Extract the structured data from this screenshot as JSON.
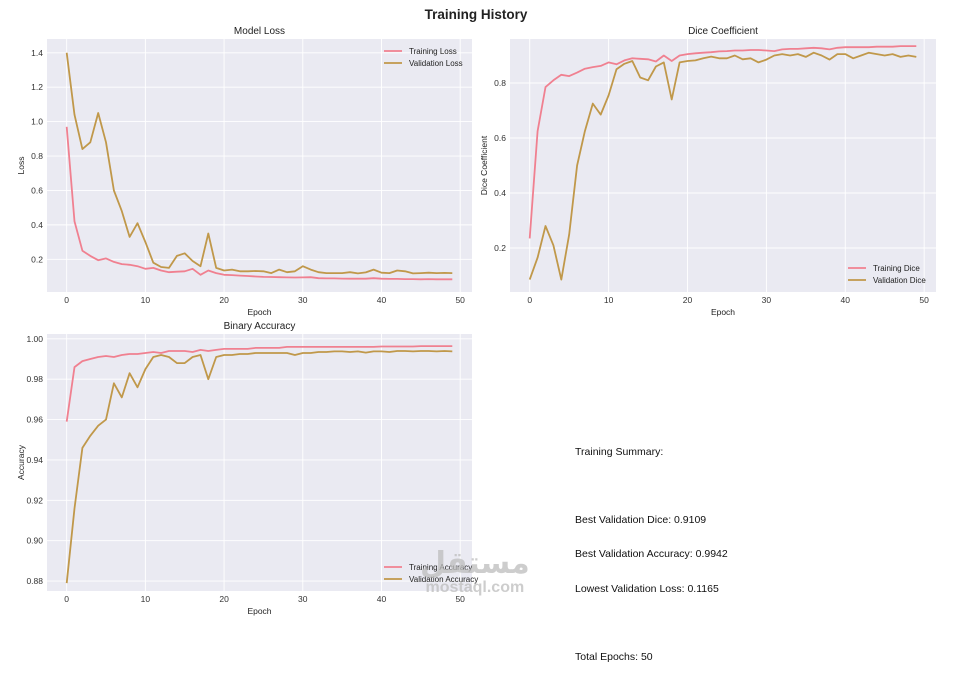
{
  "title": "Training History",
  "chart_data": [
    {
      "type": "line",
      "title": "Model Loss",
      "xlabel": "Epoch",
      "ylabel": "Loss",
      "xlim": [
        -2.5,
        51.5
      ],
      "ylim": [
        0.01,
        1.48
      ],
      "xticks": [
        0,
        10,
        20,
        30,
        40,
        50
      ],
      "yticks": [
        0.2,
        0.4,
        0.6,
        0.8,
        1.0,
        1.2,
        1.4
      ],
      "yfmt": 1,
      "legend": "top-right",
      "series": [
        {
          "name": "Training Loss",
          "color": "#f08090",
          "values": [
            0.97,
            0.42,
            0.25,
            0.22,
            0.195,
            0.205,
            0.185,
            0.172,
            0.168,
            0.16,
            0.145,
            0.15,
            0.135,
            0.125,
            0.128,
            0.13,
            0.145,
            0.11,
            0.135,
            0.12,
            0.11,
            0.108,
            0.105,
            0.103,
            0.1,
            0.098,
            0.097,
            0.096,
            0.095,
            0.094,
            0.095,
            0.096,
            0.09,
            0.089,
            0.089,
            0.088,
            0.087,
            0.088,
            0.087,
            0.09,
            0.087,
            0.086,
            0.086,
            0.085,
            0.085,
            0.084,
            0.085,
            0.084,
            0.084,
            0.084
          ]
        },
        {
          "name": "Validation Loss",
          "color": "#c0984a",
          "values": [
            1.4,
            1.04,
            0.84,
            0.88,
            1.05,
            0.88,
            0.6,
            0.48,
            0.33,
            0.41,
            0.3,
            0.18,
            0.155,
            0.15,
            0.22,
            0.235,
            0.19,
            0.16,
            0.35,
            0.15,
            0.135,
            0.14,
            0.13,
            0.13,
            0.132,
            0.13,
            0.12,
            0.14,
            0.125,
            0.13,
            0.16,
            0.14,
            0.125,
            0.12,
            0.12,
            0.12,
            0.125,
            0.118,
            0.124,
            0.14,
            0.122,
            0.12,
            0.135,
            0.13,
            0.118,
            0.12,
            0.122,
            0.12,
            0.121,
            0.12
          ]
        }
      ]
    },
    {
      "type": "line",
      "title": "Dice Coefficient",
      "xlabel": "Epoch",
      "ylabel": "Dice Coefficient",
      "xlim": [
        -2.5,
        51.5
      ],
      "ylim": [
        0.04,
        0.96
      ],
      "xticks": [
        0,
        10,
        20,
        30,
        40,
        50
      ],
      "yticks": [
        0.2,
        0.4,
        0.6,
        0.8
      ],
      "yfmt": 1,
      "legend": "bottom-right",
      "series": [
        {
          "name": "Training Dice",
          "color": "#f08090",
          "values": [
            0.235,
            0.625,
            0.785,
            0.81,
            0.83,
            0.825,
            0.838,
            0.852,
            0.858,
            0.862,
            0.875,
            0.868,
            0.882,
            0.89,
            0.888,
            0.886,
            0.878,
            0.9,
            0.88,
            0.9,
            0.905,
            0.908,
            0.91,
            0.912,
            0.915,
            0.916,
            0.918,
            0.918,
            0.92,
            0.92,
            0.918,
            0.916,
            0.922,
            0.924,
            0.924,
            0.926,
            0.928,
            0.926,
            0.922,
            0.928,
            0.93,
            0.93,
            0.93,
            0.93,
            0.932,
            0.932,
            0.932,
            0.934,
            0.934,
            0.934
          ]
        },
        {
          "name": "Validation Dice",
          "color": "#c0984a",
          "values": [
            0.085,
            0.165,
            0.28,
            0.21,
            0.085,
            0.25,
            0.5,
            0.625,
            0.725,
            0.685,
            0.755,
            0.85,
            0.87,
            0.88,
            0.82,
            0.81,
            0.86,
            0.875,
            0.74,
            0.875,
            0.88,
            0.882,
            0.89,
            0.896,
            0.89,
            0.89,
            0.9,
            0.886,
            0.89,
            0.875,
            0.885,
            0.9,
            0.905,
            0.9,
            0.905,
            0.895,
            0.91,
            0.9,
            0.885,
            0.905,
            0.905,
            0.89,
            0.9,
            0.91,
            0.905,
            0.9,
            0.905,
            0.895,
            0.9,
            0.895
          ]
        }
      ]
    },
    {
      "type": "line",
      "title": "Binary Accuracy",
      "xlabel": "Epoch",
      "ylabel": "Accuracy",
      "xlim": [
        -2.5,
        51.5
      ],
      "ylim": [
        0.8751,
        1.0024
      ],
      "xticks": [
        0,
        10,
        20,
        30,
        40,
        50
      ],
      "yticks": [
        0.88,
        0.9,
        0.92,
        0.94,
        0.96,
        0.98,
        1.0
      ],
      "yfmt": 2,
      "legend": "bottom-right",
      "series": [
        {
          "name": "Training Accuracy",
          "color": "#f08090",
          "values": [
            0.959,
            0.986,
            0.989,
            0.99,
            0.991,
            0.9915,
            0.991,
            0.992,
            0.9925,
            0.9925,
            0.993,
            0.9935,
            0.993,
            0.994,
            0.994,
            0.994,
            0.9935,
            0.9945,
            0.994,
            0.9945,
            0.995,
            0.995,
            0.995,
            0.995,
            0.9955,
            0.9955,
            0.9955,
            0.9955,
            0.996,
            0.996,
            0.996,
            0.996,
            0.996,
            0.996,
            0.996,
            0.996,
            0.996,
            0.996,
            0.996,
            0.996,
            0.9962,
            0.9962,
            0.9962,
            0.9962,
            0.9962,
            0.9964,
            0.9964,
            0.9964,
            0.9964,
            0.9964
          ]
        },
        {
          "name": "Validation Accuracy",
          "color": "#c0984a",
          "values": [
            0.879,
            0.916,
            0.946,
            0.952,
            0.957,
            0.96,
            0.978,
            0.971,
            0.983,
            0.976,
            0.985,
            0.991,
            0.992,
            0.991,
            0.988,
            0.988,
            0.991,
            0.992,
            0.98,
            0.991,
            0.992,
            0.992,
            0.9925,
            0.9925,
            0.993,
            0.993,
            0.993,
            0.993,
            0.993,
            0.992,
            0.993,
            0.993,
            0.9935,
            0.9935,
            0.9938,
            0.9938,
            0.9935,
            0.9938,
            0.9932,
            0.9938,
            0.9938,
            0.9935,
            0.994,
            0.994,
            0.9938,
            0.994,
            0.994,
            0.9938,
            0.994,
            0.9938
          ]
        }
      ]
    }
  ],
  "summary": {
    "heading": "Training Summary:",
    "best_dice": "Best Validation Dice: 0.9109",
    "best_accuracy": "Best Validation Accuracy: 0.9942",
    "lowest_loss": "Lowest Validation Loss: 0.1165",
    "total_epochs": "Total Epochs: 50"
  },
  "watermark": {
    "arabic": "مستقل",
    "latin": "mostaql.com"
  }
}
